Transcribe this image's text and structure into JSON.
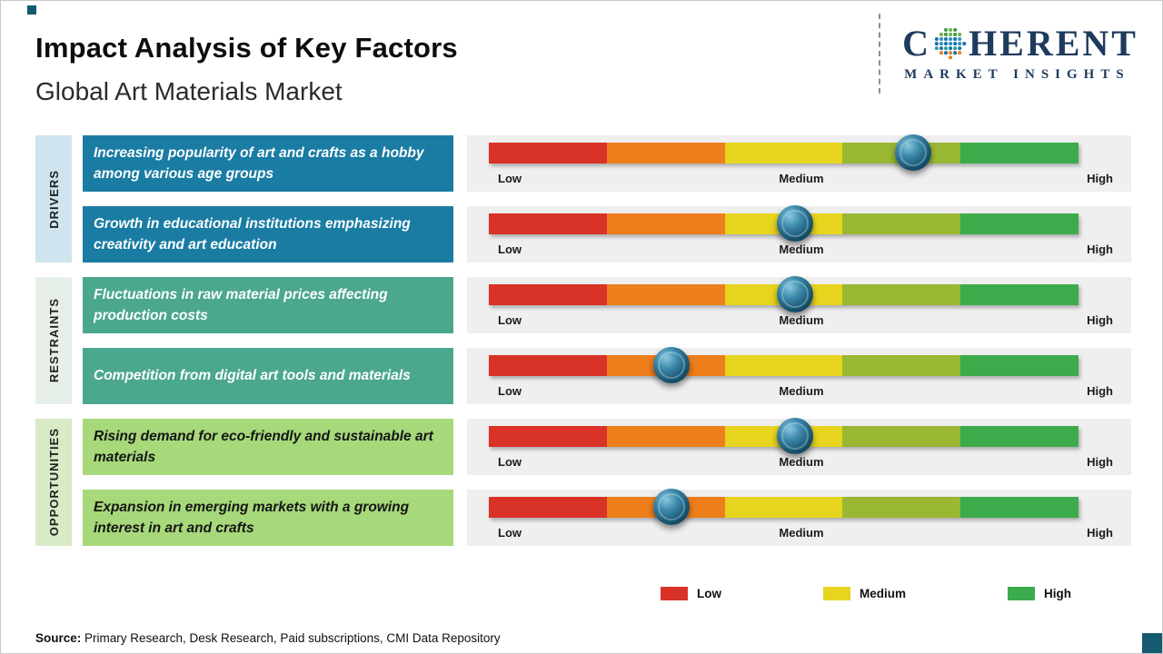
{
  "header": {
    "title": "Impact Analysis of Key Factors",
    "subtitle": "Global Art Materials Market"
  },
  "logo": {
    "name_start": "C",
    "name_end": "HERENT",
    "tagline": "MARKET INSIGHTS"
  },
  "scale": {
    "low": "Low",
    "medium": "Medium",
    "high": "High"
  },
  "gauge": {
    "segment_colors": [
      "#d93226",
      "#ee7e1b",
      "#e6d41e",
      "#9ab733",
      "#3cab4b"
    ],
    "marker_color": "#1c5a77"
  },
  "groups": [
    {
      "label": "DRIVERS",
      "items": [
        {
          "text": "Increasing popularity of art and crafts as a hobby among various age groups",
          "impact_pct": 72
        },
        {
          "text": "Growth in educational institutions emphasizing creativity and art education",
          "impact_pct": 52
        }
      ]
    },
    {
      "label": "RESTRAINTS",
      "items": [
        {
          "text": "Fluctuations in raw material prices affecting production costs",
          "impact_pct": 52
        },
        {
          "text": "Competition from digital art tools and materials",
          "impact_pct": 31
        }
      ]
    },
    {
      "label": "OPPORTUNITIES",
      "items": [
        {
          "text": "Rising demand for eco-friendly and sustainable art materials",
          "impact_pct": 52
        },
        {
          "text": "Expansion in emerging markets with a growing interest in art and crafts",
          "impact_pct": 31
        }
      ]
    }
  ],
  "legend": {
    "items": [
      {
        "label": "Low",
        "color": "#d93226"
      },
      {
        "label": "Medium",
        "color": "#e6d41e"
      },
      {
        "label": "High",
        "color": "#3cab4b"
      }
    ]
  },
  "source": {
    "label": "Source:",
    "text": " Primary Research, Desk Research, Paid subscriptions, CMI Data Repository"
  },
  "colors": {
    "drivers_box": "#1a7ca3",
    "drivers_tab": "#cfe4ee",
    "restraints_box": "#4ba78e",
    "restraints_tab": "#e7efe9",
    "opportunities_box": "#a7d87a",
    "opportunities_tab": "#d8eac6",
    "logo_navy": "#1e3a5c",
    "corner_teal": "#155a70"
  }
}
